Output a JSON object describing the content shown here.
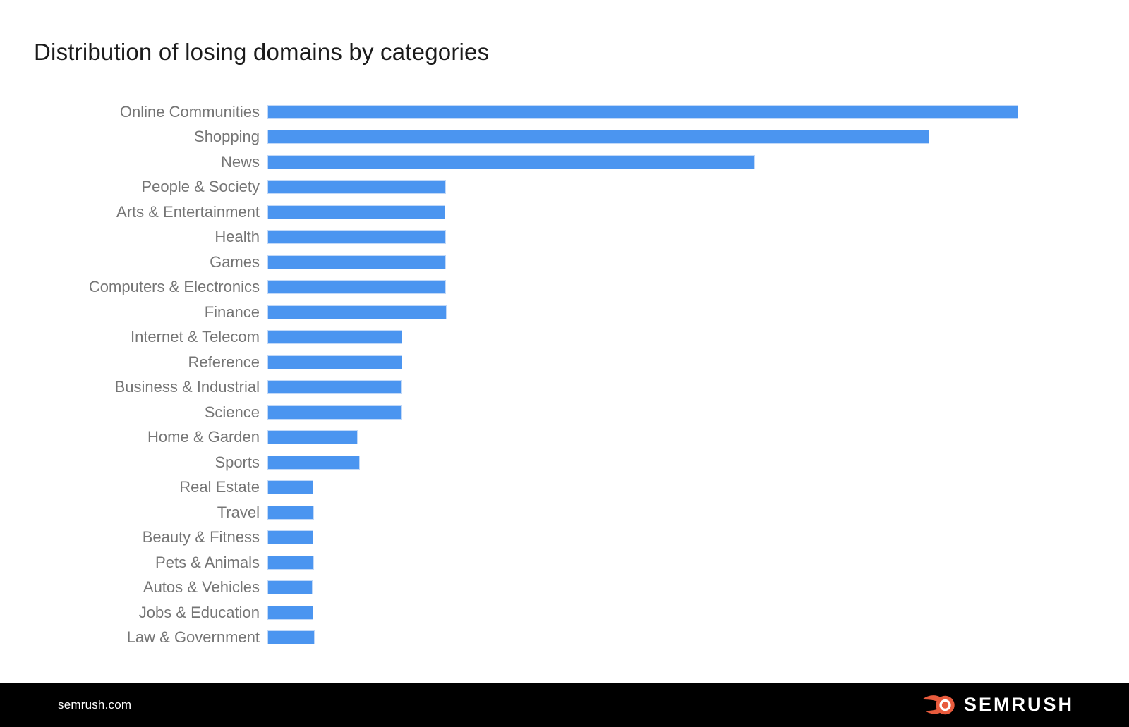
{
  "page": {
    "title": "Distribution of losing domains by categories"
  },
  "footer": {
    "site": "semrush.com",
    "brand": "SEMRUSH"
  },
  "colors": {
    "bar": "#4b95f0",
    "label_gray": "#757575",
    "title_text": "#1b1b1b",
    "footer_bg": "#000000",
    "brand_orange": "#e85b3d",
    "brand_text": "#ffffff"
  },
  "chart_data": {
    "type": "bar",
    "orientation": "horizontal",
    "title": "Distribution of losing domains by categories",
    "xlabel": "",
    "ylabel": "",
    "axis_value_labels_visible": false,
    "gridlines": false,
    "legend": "none",
    "bar_color": "#4b95f0",
    "categories": [
      "Online Communities",
      "Shopping",
      "News",
      "People & Society",
      "Arts & Entertainment",
      "Health",
      "Games",
      "Computers & Electronics",
      "Finance",
      "Internet & Telecom",
      "Reference",
      "Business & Industrial",
      "Science",
      "Home & Garden",
      "Sports",
      "Real Estate",
      "Travel",
      "Beauty & Fitness",
      "Pets & Animals",
      "Autos & Vehicles",
      "Jobs & Education",
      "Law & Government"
    ],
    "values_pct_of_max": [
      100.0,
      88.1,
      64.9,
      23.6,
      23.5,
      23.6,
      23.6,
      23.6,
      23.7,
      17.8,
      17.8,
      17.7,
      17.7,
      11.9,
      12.1,
      5.9,
      6.0,
      5.9,
      6.0,
      5.8,
      5.9,
      6.1
    ]
  }
}
